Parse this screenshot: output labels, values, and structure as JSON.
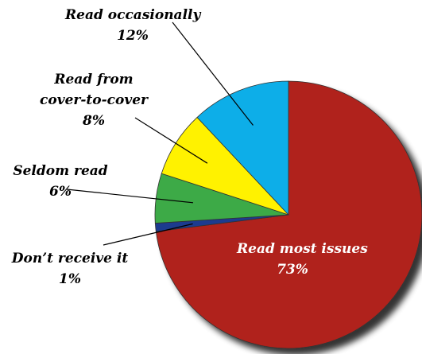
{
  "chart_data": {
    "type": "pie",
    "title": "",
    "slices": [
      {
        "name": "Read most issues",
        "value": 73,
        "value_label": "73%",
        "color": "#b0231b",
        "label_lines": [
          "Read most issues"
        ],
        "label_placement": "inside"
      },
      {
        "name": "Don’t receive it",
        "value": 1,
        "value_label": "1%",
        "color": "#1f3a8f",
        "label_lines": [
          "Don’t receive it"
        ],
        "label_placement": "outside-left"
      },
      {
        "name": "Seldom read",
        "value": 6,
        "value_label": "6%",
        "color": "#3caa46",
        "label_lines": [
          "Seldom read"
        ],
        "label_placement": "outside-left"
      },
      {
        "name": "Read from cover-to-cover",
        "value": 8,
        "value_label": "8%",
        "color": "#fff200",
        "label_lines": [
          "Read from",
          "cover-to-cover"
        ],
        "label_placement": "outside-top-left"
      },
      {
        "name": "Read occasionally",
        "value": 12,
        "value_label": "12%",
        "color": "#0aaee8",
        "label_lines": [
          "Read occasionally"
        ],
        "label_placement": "outside-top"
      }
    ],
    "start_angle": "12 o'clock",
    "direction": "clockwise",
    "legend": "none",
    "grid": false
  }
}
